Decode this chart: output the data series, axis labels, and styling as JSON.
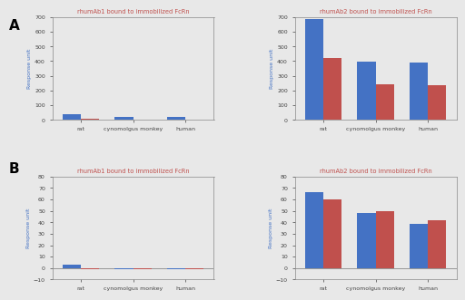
{
  "panel_A_left": {
    "title": "rhumAb1 bound to immobilized FcRn",
    "categories": [
      "rat",
      "cynomolgus monkey",
      "human"
    ],
    "blue_values": [
      42,
      18,
      22
    ],
    "red_values": [
      10,
      4,
      5
    ],
    "ylim": [
      0,
      700
    ],
    "yticks": [
      0,
      100,
      200,
      300,
      400,
      500,
      600,
      700
    ],
    "ylabel": "Response unit"
  },
  "panel_A_right": {
    "title": "rhumAb2 bound to immobilized FcRn",
    "categories": [
      "rat",
      "cynomolgus monkey",
      "human"
    ],
    "blue_values": [
      685,
      398,
      392
    ],
    "red_values": [
      422,
      242,
      235
    ],
    "ylim": [
      0,
      700
    ],
    "yticks": [
      0,
      100,
      200,
      300,
      400,
      500,
      600,
      700
    ],
    "ylabel": "Response unit"
  },
  "panel_B_left": {
    "title": "rhumAb1 bound to immobilized FcRn",
    "categories": [
      "rat",
      "cynomolgus monkey",
      "human"
    ],
    "blue_values": [
      3,
      -1,
      -1
    ],
    "red_values": [
      -1,
      -1,
      -1
    ],
    "ylim": [
      -10,
      80
    ],
    "yticks": [
      -10,
      0,
      10,
      20,
      30,
      40,
      50,
      60,
      70,
      80
    ],
    "ylabel": "Response unit"
  },
  "panel_B_right": {
    "title": "rhumAb2 bound to immobilized FcRn",
    "categories": [
      "rat",
      "cynomolgus monkey",
      "human"
    ],
    "blue_values": [
      66,
      48,
      39
    ],
    "red_values": [
      60,
      50,
      42
    ],
    "ylim": [
      -10,
      80
    ],
    "yticks": [
      -10,
      0,
      10,
      20,
      30,
      40,
      50,
      60,
      70,
      80
    ],
    "ylabel": "Response unit"
  },
  "blue_color": "#4472C4",
  "red_color": "#C0504D",
  "title_color_A": "#C0504D",
  "title_color_B_left": "#C0504D",
  "title_color_B_right": "#C0504D",
  "ylabel_color": "#4472C4",
  "bar_width": 0.35,
  "label_A": "A",
  "label_B": "B",
  "background_color": "#E8E8E8",
  "axes_background": "#E8E8E8"
}
